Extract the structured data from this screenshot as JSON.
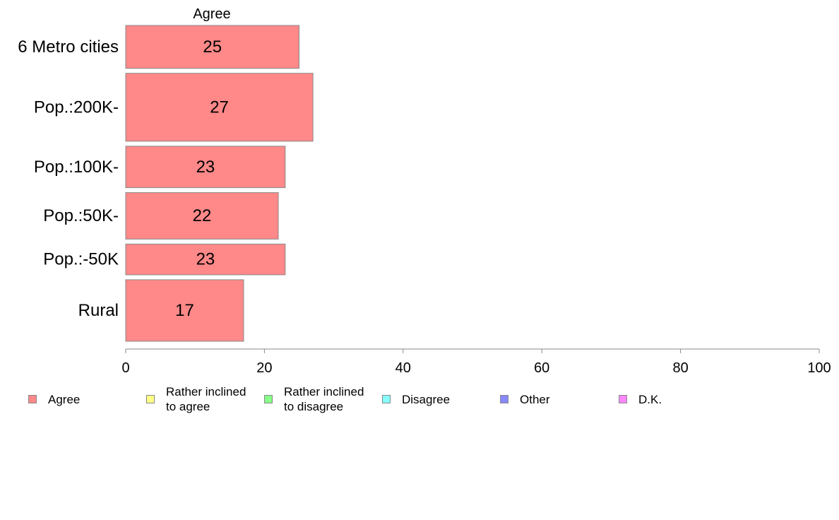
{
  "chart_data": {
    "type": "bar",
    "orientation": "horizontal",
    "column_header": "Agree",
    "categories": [
      "6 Metro cities",
      "Pop.:200K-",
      "Pop.:100K-",
      "Pop.:50K-",
      "Pop.:-50K",
      "Rural"
    ],
    "series": [
      {
        "values": [
          25,
          27,
          23,
          22,
          23,
          17
        ],
        "color": "#ff8888"
      }
    ],
    "data_labels": [
      "25",
      "27",
      "23",
      "22",
      "23",
      "17"
    ],
    "relative_bar_heights": [
      60,
      95,
      58,
      65,
      43,
      86
    ],
    "xlim": [
      0,
      100
    ],
    "xticks": [
      0,
      20,
      40,
      60,
      80,
      100
    ],
    "xtick_labels": [
      "0",
      "20",
      "40",
      "60",
      "80",
      "100"
    ],
    "grid": false,
    "legend": {
      "placement": "bottom",
      "entries": [
        {
          "label": "Agree",
          "color": "#ff8888"
        },
        {
          "label": "Rather inclined\nto agree",
          "color": "#ffff88"
        },
        {
          "label": "Rather inclined\nto disagree",
          "color": "#88ff88"
        },
        {
          "label": "Disagree",
          "color": "#88ffff"
        },
        {
          "label": "Other",
          "color": "#8888ff"
        },
        {
          "label": "D.K.",
          "color": "#ff88ff"
        }
      ]
    }
  }
}
